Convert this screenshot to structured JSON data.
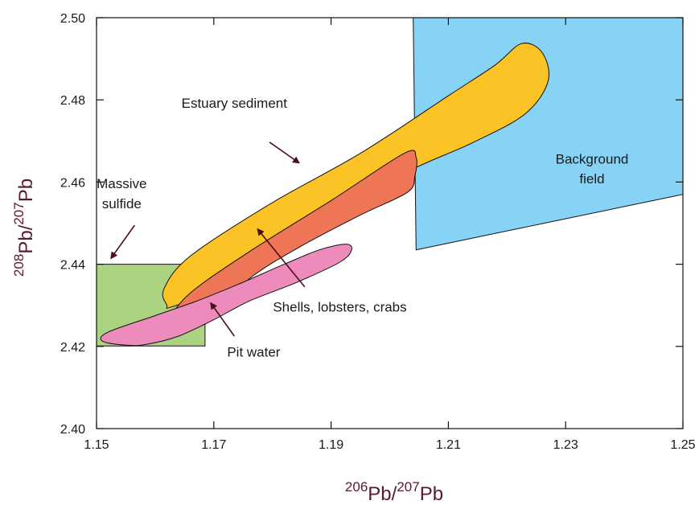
{
  "chart_data": {
    "type": "scatter",
    "title": "",
    "xlabel": {
      "sup1": "206",
      "base1": "Pb/",
      "sup2": "207",
      "base2": "Pb"
    },
    "ylabel": {
      "sup1": "208",
      "base1": "Pb/",
      "sup2": "207",
      "base2": "Pb"
    },
    "xlim": [
      1.15,
      1.25
    ],
    "ylim": [
      2.4,
      2.5
    ],
    "xticks": [
      "1.15",
      "1.17",
      "1.19",
      "1.21",
      "1.23",
      "1.25"
    ],
    "yticks": [
      "2.40",
      "2.42",
      "2.44",
      "2.46",
      "2.48",
      "2.50"
    ],
    "grid": false,
    "fields": [
      {
        "id": "background",
        "color": "#87d3f5",
        "polygon": [
          [
            1.204,
            2.5
          ],
          [
            1.25,
            2.5
          ],
          [
            1.25,
            2.457
          ],
          [
            1.2045,
            2.4435
          ]
        ]
      },
      {
        "id": "massive-sulfide",
        "color": "#acd480",
        "polygon": [
          [
            1.15,
            2.44
          ],
          [
            1.1685,
            2.44
          ],
          [
            1.1685,
            2.4201
          ],
          [
            1.15,
            2.4201
          ]
        ]
      },
      {
        "id": "estuary-sediment",
        "color": "#fbc325",
        "polygon": [
          [
            1.162,
            2.43
          ],
          [
            1.1615,
            2.434
          ],
          [
            1.166,
            2.442
          ],
          [
            1.18,
            2.455
          ],
          [
            1.195,
            2.467
          ],
          [
            1.21,
            2.481
          ],
          [
            1.218,
            2.4885
          ],
          [
            1.2225,
            2.4937
          ],
          [
            1.226,
            2.4915
          ],
          [
            1.227,
            2.4845
          ],
          [
            1.223,
            2.4765
          ],
          [
            1.214,
            2.4695
          ],
          [
            1.203,
            2.4625
          ],
          [
            1.19,
            2.4517
          ],
          [
            1.176,
            2.4397
          ],
          [
            1.168,
            2.4325
          ],
          [
            1.1625,
            2.4295
          ]
        ]
      },
      {
        "id": "shells",
        "color": "#ef7557",
        "polygon": [
          [
            1.163,
            2.4235
          ],
          [
            1.1625,
            2.4265
          ],
          [
            1.166,
            2.433
          ],
          [
            1.176,
            2.443
          ],
          [
            1.19,
            2.4555
          ],
          [
            1.2025,
            2.467
          ],
          [
            1.2045,
            2.466
          ],
          [
            1.2043,
            2.4615
          ],
          [
            1.203,
            2.4575
          ],
          [
            1.195,
            2.452
          ],
          [
            1.185,
            2.4445
          ],
          [
            1.177,
            2.4375
          ],
          [
            1.17,
            2.429
          ],
          [
            1.164,
            2.423
          ]
        ]
      },
      {
        "id": "pit-water",
        "color": "#ee8bbd",
        "polygon": [
          [
            1.155,
            2.4203
          ],
          [
            1.151,
            2.4213
          ],
          [
            1.152,
            2.4235
          ],
          [
            1.16,
            2.4275
          ],
          [
            1.167,
            2.431
          ],
          [
            1.174,
            2.435
          ],
          [
            1.182,
            2.44
          ],
          [
            1.188,
            2.4435
          ],
          [
            1.1925,
            2.4449
          ],
          [
            1.1935,
            2.4435
          ],
          [
            1.1915,
            2.4405
          ],
          [
            1.184,
            2.4355
          ],
          [
            1.176,
            2.431
          ],
          [
            1.17,
            2.4265
          ],
          [
            1.164,
            2.4225
          ],
          [
            1.1585,
            2.4205
          ]
        ]
      }
    ],
    "annotations": [
      {
        "id": "estuary-label",
        "lines": [
          "Estuary sediment"
        ],
        "x": 1.1735,
        "y": 2.4781,
        "arrow_from": [
          1.1795,
          2.4697
        ],
        "arrow_to": [
          1.1845,
          2.4647
        ]
      },
      {
        "id": "shells-label",
        "lines": [
          "Shells, lobsters, crabs"
        ],
        "x": 1.1915,
        "y": 2.4285,
        "arrow_from": [
          1.1855,
          2.4345
        ],
        "arrow_to": [
          1.1775,
          2.4485
        ]
      },
      {
        "id": "pit-water-label",
        "lines": [
          "Pit water"
        ],
        "x": 1.1768,
        "y": 2.4175,
        "arrow_from": [
          1.1735,
          2.4225
        ],
        "arrow_to": [
          1.1695,
          2.4305
        ]
      },
      {
        "id": "massive-sulfide-label",
        "lines": [
          "Massive",
          "sulfide"
        ],
        "x": 1.1543,
        "y": 2.4585,
        "arrow_from": [
          1.1565,
          2.4495
        ],
        "arrow_to": [
          1.1525,
          2.4415
        ]
      },
      {
        "id": "background-label",
        "lines": [
          "Background",
          "field"
        ],
        "x": 1.2345,
        "y": 2.4645
      }
    ]
  }
}
